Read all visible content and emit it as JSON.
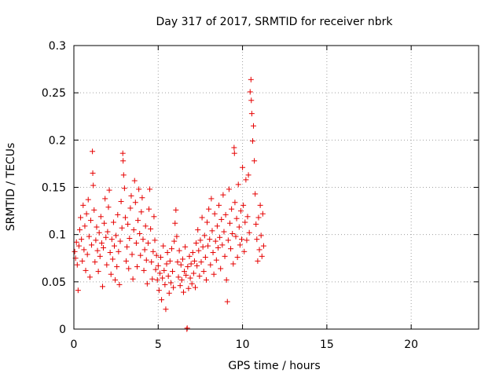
{
  "chart_data": {
    "type": "scatter",
    "title": "Day 317 of 2017, SRMTID for receiver nbrk",
    "xlabel": "GPS time / hours",
    "ylabel": "SRMTID / TECUs",
    "xlim": [
      0,
      24
    ],
    "ylim": [
      0,
      0.3
    ],
    "xticks": [
      0,
      5,
      10,
      15,
      20
    ],
    "xtick_labels": [
      "0",
      "5",
      "10",
      "15",
      "20"
    ],
    "yticks": [
      0,
      0.05,
      0.1,
      0.15,
      0.2,
      0.25,
      0.3
    ],
    "ytick_labels": [
      "0",
      "0.05",
      "0.1",
      "0.15",
      "0.2",
      "0.25",
      "0.3"
    ],
    "grid": true,
    "marker": "+",
    "marker_color": "#e60000",
    "series": [
      {
        "name": "SRMTID",
        "points": [
          [
            0.05,
            0.082
          ],
          [
            0.1,
            0.075
          ],
          [
            0.15,
            0.092
          ],
          [
            0.2,
            0.068
          ],
          [
            0.25,
            0.041
          ],
          [
            0.3,
            0.088
          ],
          [
            0.35,
            0.105
          ],
          [
            0.4,
            0.118
          ],
          [
            0.45,
            0.095
          ],
          [
            0.5,
            0.072
          ],
          [
            0.55,
            0.131
          ],
          [
            0.6,
            0.084
          ],
          [
            0.65,
            0.109
          ],
          [
            0.7,
            0.062
          ],
          [
            0.75,
            0.122
          ],
          [
            0.8,
            0.079
          ],
          [
            0.85,
            0.137
          ],
          [
            0.9,
            0.098
          ],
          [
            0.95,
            0.055
          ],
          [
            1.0,
            0.115
          ],
          [
            1.05,
            0.089
          ],
          [
            1.1,
            0.188
          ],
          [
            1.12,
            0.165
          ],
          [
            1.15,
            0.152
          ],
          [
            1.2,
            0.126
          ],
          [
            1.25,
            0.071
          ],
          [
            1.3,
            0.094
          ],
          [
            1.35,
            0.108
          ],
          [
            1.4,
            0.083
          ],
          [
            1.45,
            0.061
          ],
          [
            1.5,
            0.102
          ],
          [
            1.55,
            0.077
          ],
          [
            1.6,
            0.119
          ],
          [
            1.65,
            0.091
          ],
          [
            1.7,
            0.045
          ],
          [
            1.75,
            0.086
          ],
          [
            1.8,
            0.112
          ],
          [
            1.85,
            0.138
          ],
          [
            1.9,
            0.097
          ],
          [
            1.95,
            0.068
          ],
          [
            2.0,
            0.103
          ],
          [
            2.05,
            0.129
          ],
          [
            2.1,
            0.147
          ],
          [
            2.15,
            0.081
          ],
          [
            2.2,
            0.058
          ],
          [
            2.25,
            0.095
          ],
          [
            2.3,
            0.074
          ],
          [
            2.35,
            0.113
          ],
          [
            2.4,
            0.088
          ],
          [
            2.45,
            0.052
          ],
          [
            2.5,
            0.099
          ],
          [
            2.55,
            0.066
          ],
          [
            2.6,
            0.121
          ],
          [
            2.65,
            0.082
          ],
          [
            2.7,
            0.047
          ],
          [
            2.75,
            0.093
          ],
          [
            2.8,
            0.135
          ],
          [
            2.85,
            0.107
          ],
          [
            2.9,
            0.186
          ],
          [
            2.92,
            0.178
          ],
          [
            2.95,
            0.163
          ],
          [
            3.0,
            0.149
          ],
          [
            3.05,
            0.118
          ],
          [
            3.1,
            0.072
          ],
          [
            3.15,
            0.087
          ],
          [
            3.2,
            0.111
          ],
          [
            3.25,
            0.064
          ],
          [
            3.3,
            0.096
          ],
          [
            3.35,
            0.128
          ],
          [
            3.4,
            0.141
          ],
          [
            3.45,
            0.079
          ],
          [
            3.5,
            0.053
          ],
          [
            3.55,
            0.105
          ],
          [
            3.6,
            0.157
          ],
          [
            3.65,
            0.134
          ],
          [
            3.7,
            0.091
          ],
          [
            3.75,
            0.066
          ],
          [
            3.8,
            0.115
          ],
          [
            3.85,
            0.148
          ],
          [
            3.9,
            0.101
          ],
          [
            3.95,
            0.078
          ],
          [
            4.0,
            0.124
          ],
          [
            4.05,
            0.139
          ],
          [
            4.1,
            0.095
          ],
          [
            4.15,
            0.062
          ],
          [
            4.2,
            0.084
          ],
          [
            4.25,
            0.109
          ],
          [
            4.3,
            0.073
          ],
          [
            4.35,
            0.048
          ],
          [
            4.4,
            0.091
          ],
          [
            4.45,
            0.127
          ],
          [
            4.5,
            0.148
          ],
          [
            4.55,
            0.106
          ],
          [
            4.6,
            0.071
          ],
          [
            4.65,
            0.053
          ],
          [
            4.7,
            0.082
          ],
          [
            4.75,
            0.119
          ],
          [
            4.8,
            0.094
          ],
          [
            4.85,
            0.063
          ],
          [
            4.9,
            0.078
          ],
          [
            4.95,
            0.052
          ],
          [
            5.0,
            0.067
          ],
          [
            5.05,
            0.041
          ],
          [
            5.1,
            0.059
          ],
          [
            5.15,
            0.076
          ],
          [
            5.2,
            0.031
          ],
          [
            5.25,
            0.054
          ],
          [
            5.3,
            0.088
          ],
          [
            5.35,
            0.062
          ],
          [
            5.4,
            0.047
          ],
          [
            5.45,
            0.021
          ],
          [
            5.5,
            0.069
          ],
          [
            5.55,
            0.081
          ],
          [
            5.6,
            0.056
          ],
          [
            5.65,
            0.038
          ],
          [
            5.7,
            0.072
          ],
          [
            5.75,
            0.049
          ],
          [
            5.8,
            0.085
          ],
          [
            5.85,
            0.061
          ],
          [
            5.9,
            0.044
          ],
          [
            5.95,
            0.093
          ],
          [
            6.0,
            0.112
          ],
          [
            6.05,
            0.126
          ],
          [
            6.1,
            0.098
          ],
          [
            6.15,
            0.071
          ],
          [
            6.2,
            0.055
          ],
          [
            6.25,
            0.083
          ],
          [
            6.3,
            0.046
          ],
          [
            6.35,
            0.068
          ],
          [
            6.4,
            0.052
          ],
          [
            6.45,
            0.074
          ],
          [
            6.5,
            0.039
          ],
          [
            6.55,
            0.061
          ],
          [
            6.6,
            0.087
          ],
          [
            6.65,
            0.057
          ],
          [
            6.7,
            0.0
          ],
          [
            6.72,
            0.001
          ],
          [
            6.75,
            0.066
          ],
          [
            6.8,
            0.043
          ],
          [
            6.85,
            0.077
          ],
          [
            6.9,
            0.054
          ],
          [
            6.95,
            0.069
          ],
          [
            7.0,
            0.048
          ],
          [
            7.05,
            0.081
          ],
          [
            7.1,
            0.059
          ],
          [
            7.15,
            0.072
          ],
          [
            7.2,
            0.044
          ],
          [
            7.25,
            0.091
          ],
          [
            7.3,
            0.067
          ],
          [
            7.35,
            0.105
          ],
          [
            7.4,
            0.083
          ],
          [
            7.45,
            0.056
          ],
          [
            7.5,
            0.094
          ],
          [
            7.55,
            0.071
          ],
          [
            7.6,
            0.118
          ],
          [
            7.65,
            0.087
          ],
          [
            7.7,
            0.061
          ],
          [
            7.75,
            0.099
          ],
          [
            7.8,
            0.076
          ],
          [
            7.85,
            0.052
          ],
          [
            7.9,
            0.113
          ],
          [
            7.95,
            0.088
          ],
          [
            8.0,
            0.127
          ],
          [
            8.05,
            0.095
          ],
          [
            8.1,
            0.068
          ],
          [
            8.15,
            0.138
          ],
          [
            8.2,
            0.104
          ],
          [
            8.25,
            0.081
          ],
          [
            8.3,
            0.058
          ],
          [
            8.35,
            0.122
          ],
          [
            8.4,
            0.093
          ],
          [
            8.45,
            0.073
          ],
          [
            8.5,
            0.109
          ],
          [
            8.55,
            0.086
          ],
          [
            8.6,
            0.131
          ],
          [
            8.65,
            0.097
          ],
          [
            8.7,
            0.064
          ],
          [
            8.75,
            0.116
          ],
          [
            8.8,
            0.089
          ],
          [
            8.85,
            0.142
          ],
          [
            8.9,
            0.103
          ],
          [
            8.95,
            0.077
          ],
          [
            9.0,
            0.121
          ],
          [
            9.05,
            0.052
          ],
          [
            9.1,
            0.029
          ],
          [
            9.15,
            0.094
          ],
          [
            9.2,
            0.148
          ],
          [
            9.25,
            0.112
          ],
          [
            9.3,
            0.085
          ],
          [
            9.35,
            0.127
          ],
          [
            9.4,
            0.101
          ],
          [
            9.45,
            0.069
          ],
          [
            9.5,
            0.192
          ],
          [
            9.52,
            0.186
          ],
          [
            9.55,
            0.134
          ],
          [
            9.6,
            0.098
          ],
          [
            9.65,
            0.117
          ],
          [
            9.7,
            0.076
          ],
          [
            9.75,
            0.153
          ],
          [
            9.8,
            0.108
          ],
          [
            9.85,
            0.089
          ],
          [
            9.9,
            0.125
          ],
          [
            9.95,
            0.095
          ],
          [
            10.0,
            0.171
          ],
          [
            10.05,
            0.131
          ],
          [
            10.1,
            0.082
          ],
          [
            10.15,
            0.113
          ],
          [
            10.2,
            0.158
          ],
          [
            10.25,
            0.094
          ],
          [
            10.3,
            0.119
          ],
          [
            10.35,
            0.163
          ],
          [
            10.4,
            0.102
          ],
          [
            10.45,
            0.251
          ],
          [
            10.5,
            0.264
          ],
          [
            10.52,
            0.242
          ],
          [
            10.55,
            0.228
          ],
          [
            10.6,
            0.199
          ],
          [
            10.65,
            0.215
          ],
          [
            10.7,
            0.178
          ],
          [
            10.75,
            0.143
          ],
          [
            10.8,
            0.111
          ],
          [
            10.85,
            0.095
          ],
          [
            10.9,
            0.072
          ],
          [
            10.95,
            0.118
          ],
          [
            11.0,
            0.084
          ],
          [
            11.05,
            0.131
          ],
          [
            11.1,
            0.099
          ],
          [
            11.15,
            0.077
          ],
          [
            11.2,
            0.122
          ],
          [
            11.25,
            0.088
          ]
        ]
      }
    ]
  }
}
